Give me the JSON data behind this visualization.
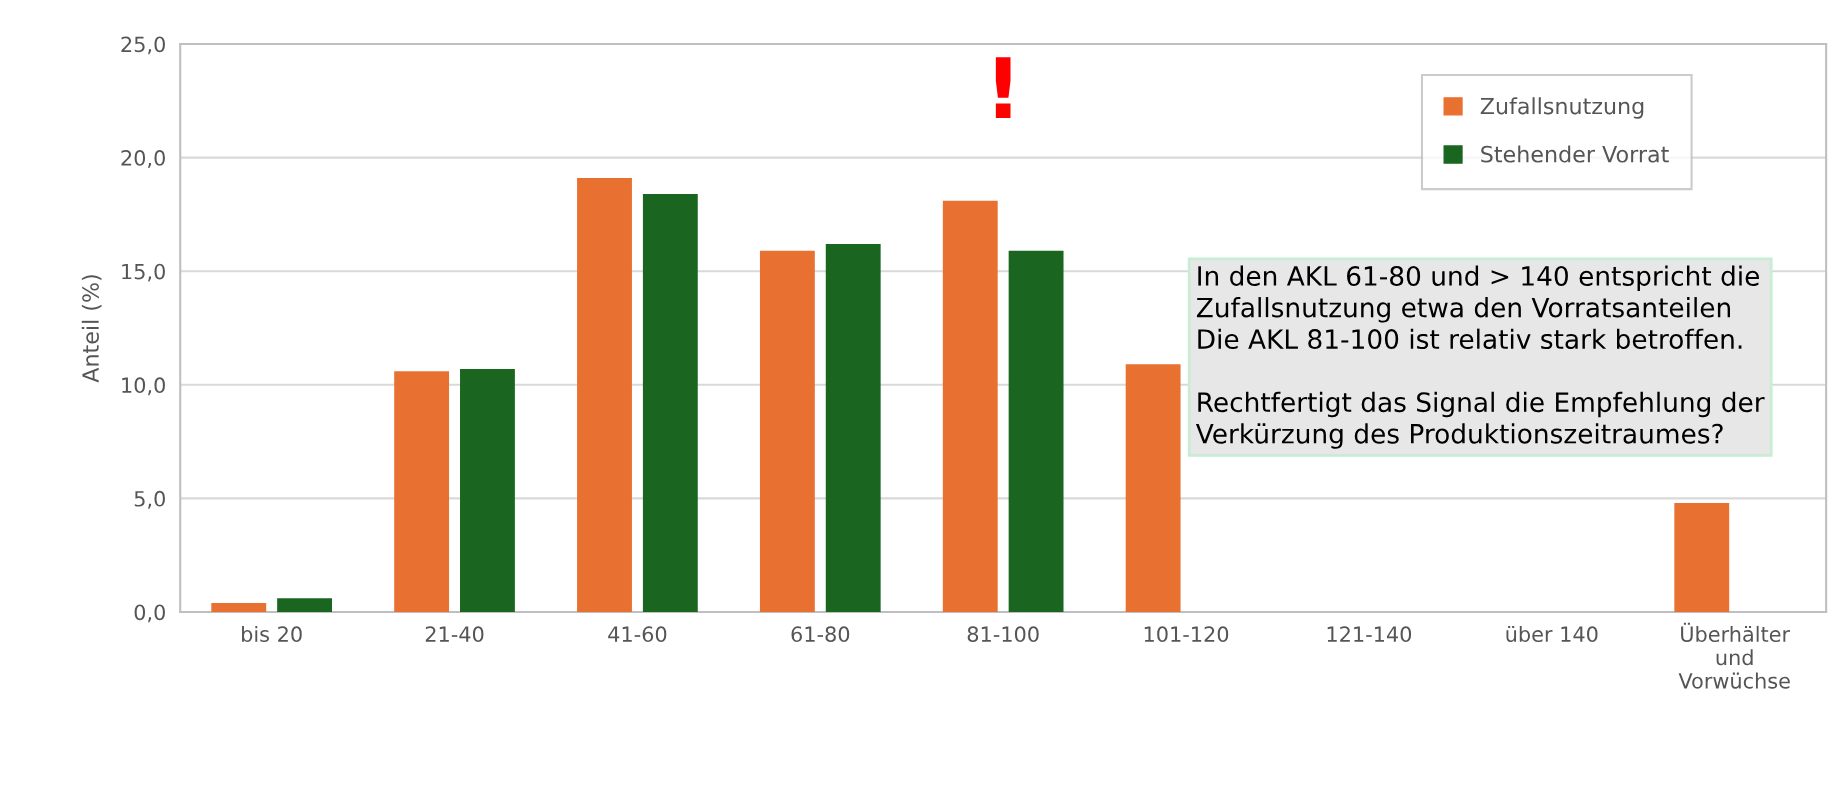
{
  "chart_data": {
    "type": "bar",
    "ylabel": "Anteil (%)",
    "categories": [
      "bis 20",
      "21-40",
      "41-60",
      "61-80",
      "81-100",
      "101-120",
      "121-140",
      "über 140",
      "Überhälter\nund\nVorwüchse"
    ],
    "series": [
      {
        "name": "Zufallsnutzung",
        "color": "#e87031",
        "values": [
          0.4,
          10.6,
          19.1,
          15.9,
          18.1,
          10.9,
          null,
          null,
          4.8
        ]
      },
      {
        "name": "Stehender Vorrat",
        "color": "#1a6620",
        "values": [
          0.6,
          10.7,
          18.4,
          16.2,
          15.9,
          null,
          null,
          null,
          null
        ]
      }
    ],
    "ylim": [
      0,
      25
    ],
    "yticks": [
      {
        "value": 0,
        "label": "0,0"
      },
      {
        "value": 5,
        "label": "5,0"
      },
      {
        "value": 10,
        "label": "10,0"
      },
      {
        "value": 15,
        "label": "15,0"
      },
      {
        "value": 20,
        "label": "20,0"
      },
      {
        "value": 25,
        "label": "25,0"
      }
    ],
    "grid": "y",
    "legend": "top right",
    "annotations": [
      "!",
      "In den AKL 61-80 und > 140 entspricht die\nZufallsnutzung etwa den Vorratsanteilen\nDie AKL 81-100 ist relativ stark betroffen.\n\nRechtfertigt das Signal die Empfehlung der\nVerkürzung des Produktionszeitraumes?"
    ]
  }
}
